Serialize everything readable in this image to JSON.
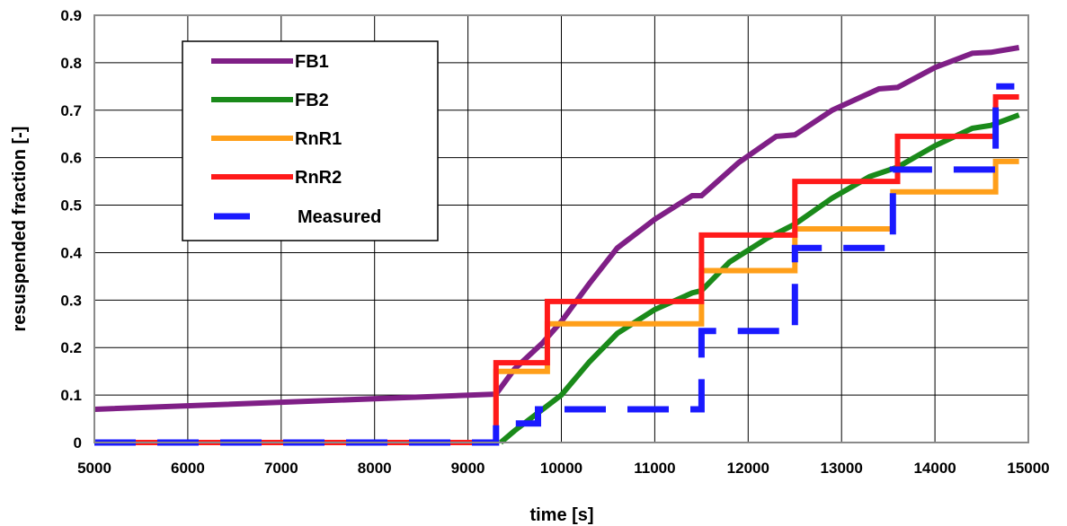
{
  "chart_data": {
    "type": "line",
    "title": "",
    "xlabel": "time [s]",
    "ylabel": "resuspended fraction [-]",
    "xlim": [
      5000,
      15000
    ],
    "ylim": [
      0,
      0.9
    ],
    "xticks": [
      5000,
      6000,
      7000,
      8000,
      9000,
      10000,
      11000,
      12000,
      13000,
      14000,
      15000
    ],
    "yticks": [
      0,
      0.1,
      0.2,
      0.3,
      0.4,
      0.5,
      0.6,
      0.7,
      0.8,
      0.9
    ],
    "xtick_labels": [
      "5000",
      "6000",
      "7000",
      "8000",
      "9000",
      "10000",
      "11000",
      "12000",
      "13000",
      "14000",
      "15000"
    ],
    "ytick_labels": [
      "0",
      "0.1",
      "0.2",
      "0.3",
      "0.4",
      "0.5",
      "0.6",
      "0.7",
      "0.8",
      "0.9"
    ],
    "grid": true,
    "legend_position": "top-left",
    "series": [
      {
        "name": "FB1",
        "color": "#7f1f86",
        "style": "solid",
        "x": [
          5000,
          9300,
          9500,
          9800,
          10000,
          10300,
          10600,
          11000,
          11400,
          11500,
          11900,
          12300,
          12500,
          12900,
          13400,
          13600,
          14000,
          14400,
          14600,
          14900
        ],
        "y": [
          0.07,
          0.102,
          0.155,
          0.21,
          0.255,
          0.335,
          0.41,
          0.47,
          0.52,
          0.52,
          0.59,
          0.645,
          0.648,
          0.7,
          0.745,
          0.748,
          0.79,
          0.82,
          0.822,
          0.832
        ]
      },
      {
        "name": "FB2",
        "color": "#1a8a1a",
        "style": "solid",
        "x": [
          9350,
          9500,
          9800,
          10000,
          10300,
          10600,
          11000,
          11400,
          11500,
          11800,
          12200,
          12500,
          12900,
          13300,
          13600,
          14000,
          14400,
          14600,
          14900
        ],
        "y": [
          0.0,
          0.025,
          0.07,
          0.1,
          0.17,
          0.23,
          0.28,
          0.315,
          0.32,
          0.38,
          0.43,
          0.46,
          0.515,
          0.56,
          0.58,
          0.625,
          0.662,
          0.668,
          0.69
        ]
      },
      {
        "name": "RnR1",
        "color": "#ff9f1a",
        "style": "solid",
        "x": [
          5000,
          9300,
          9300,
          9850,
          9850,
          11500,
          11500,
          12500,
          12500,
          13550,
          13550,
          14650,
          14650,
          14900
        ],
        "y": [
          0.0,
          0.0,
          0.15,
          0.15,
          0.25,
          0.25,
          0.362,
          0.362,
          0.45,
          0.45,
          0.528,
          0.528,
          0.592,
          0.592
        ]
      },
      {
        "name": "RnR2",
        "color": "#ff1a1a",
        "style": "solid",
        "x": [
          5000,
          9300,
          9300,
          9850,
          9850,
          11500,
          11500,
          12500,
          12500,
          13600,
          13600,
          14650,
          14650,
          14900
        ],
        "y": [
          0.0,
          0.0,
          0.168,
          0.168,
          0.297,
          0.297,
          0.437,
          0.437,
          0.55,
          0.55,
          0.645,
          0.645,
          0.728,
          0.728
        ]
      },
      {
        "name": "Measured",
        "color": "#1a1aff",
        "style": "dashed",
        "x": [
          5000,
          9300,
          9300,
          9750,
          9750,
          11500,
          11500,
          12500,
          12500,
          13550,
          13550,
          14650,
          14650,
          14850
        ],
        "y": [
          0.0,
          0.0,
          0.04,
          0.04,
          0.07,
          0.07,
          0.235,
          0.235,
          0.41,
          0.41,
          0.575,
          0.575,
          0.75,
          0.75
        ]
      }
    ]
  }
}
